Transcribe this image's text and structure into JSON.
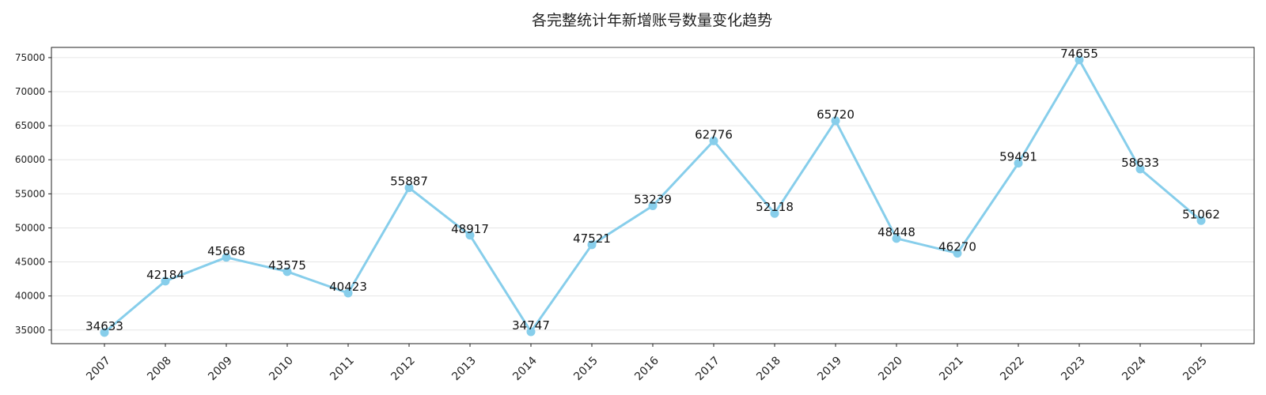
{
  "chart_data": {
    "type": "line",
    "title": "各完整统计年新增账号数量变化趋势",
    "xlabel": "",
    "ylabel": "",
    "categories": [
      "2007",
      "2008",
      "2009",
      "2010",
      "2011",
      "2012",
      "2013",
      "2014",
      "2015",
      "2016",
      "2017",
      "2018",
      "2019",
      "2020",
      "2021",
      "2022",
      "2023",
      "2024",
      "2025"
    ],
    "series": [
      {
        "values": [
          34633,
          42184,
          45668,
          43575,
          40423,
          55887,
          48917,
          34747,
          47521,
          53239,
          62776,
          52118,
          65720,
          48448,
          46270,
          59491,
          74655,
          58633,
          51062
        ],
        "color": "#87ceeb",
        "marker": "circle"
      }
    ],
    "ylim": [
      33000,
      76500
    ],
    "yticks": [
      35000,
      40000,
      45000,
      50000,
      55000,
      60000,
      65000,
      70000,
      75000
    ],
    "grid": "horizontal",
    "data_labels": true
  }
}
